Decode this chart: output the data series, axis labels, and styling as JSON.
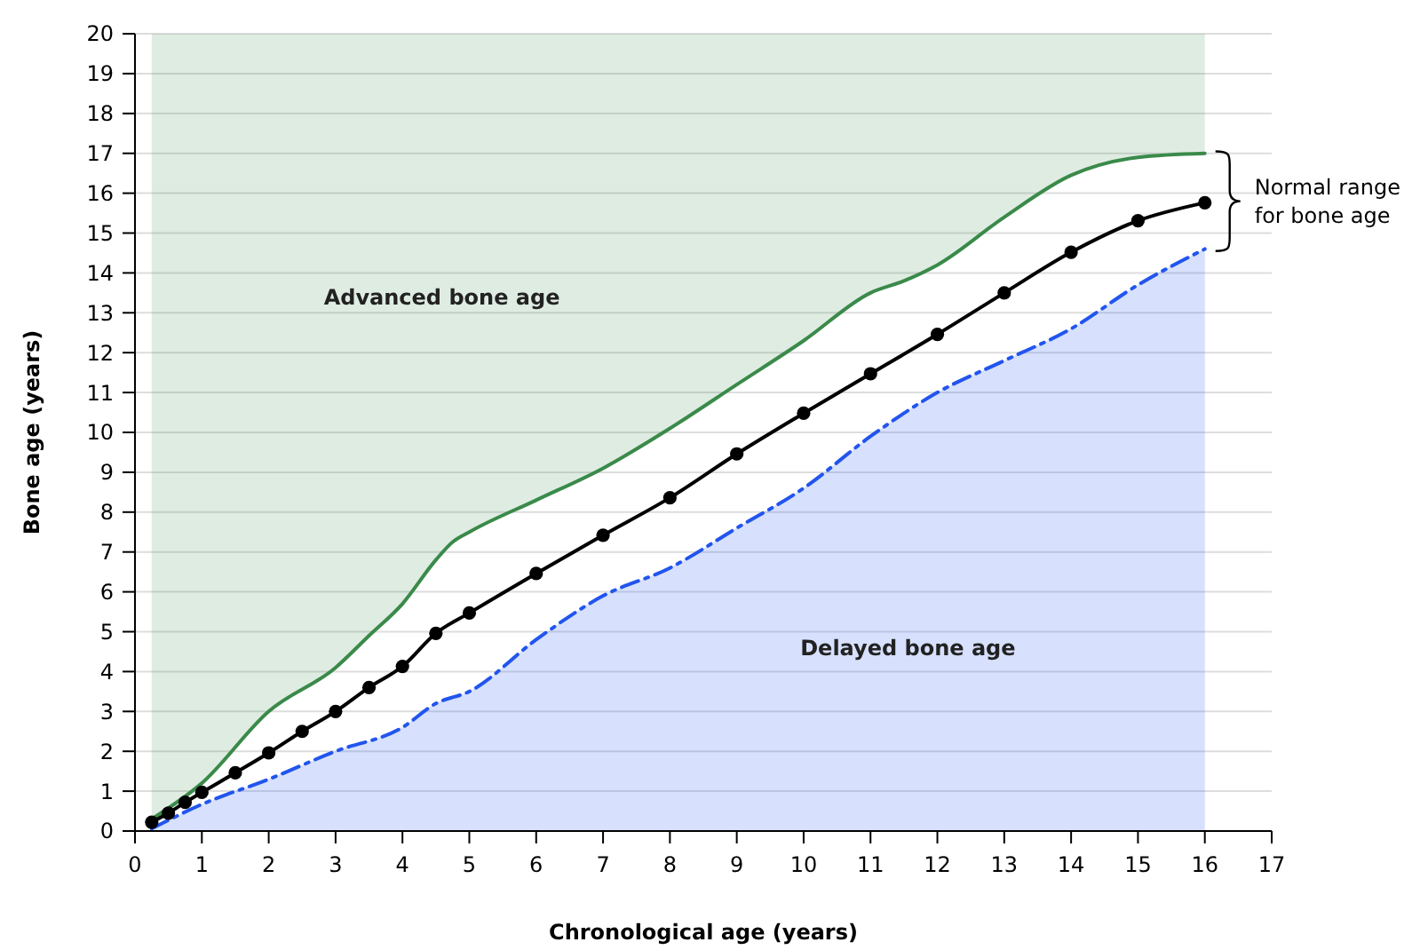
{
  "chart_data": {
    "type": "line",
    "xlabel": "Chronological age (years)",
    "ylabel": "Bone age (years)",
    "xlim": [
      0,
      17
    ],
    "xticks": [
      0,
      1,
      2,
      3,
      4,
      5,
      6,
      7,
      8,
      9,
      10,
      11,
      12,
      13,
      14,
      15,
      16,
      17
    ],
    "ylim": [
      0,
      20
    ],
    "yticks": [
      0,
      1,
      2,
      3,
      4,
      5,
      6,
      7,
      8,
      9,
      10,
      11,
      12,
      13,
      14,
      15,
      16,
      17,
      18,
      19,
      20
    ],
    "grid": "y",
    "series": [
      {
        "color": "#3a8a4a",
        "line_style": "solid",
        "marker": "none",
        "x": [
          0.25,
          1,
          2,
          3,
          3.5,
          4,
          4.5,
          4.75,
          5,
          6,
          7,
          8,
          9,
          10,
          11,
          11.5,
          12,
          13,
          14,
          15,
          16
        ],
        "values": [
          0.3,
          1.2,
          3.0,
          4.1,
          4.9,
          5.7,
          6.8,
          7.25,
          7.5,
          8.3,
          9.1,
          10.1,
          11.2,
          12.3,
          13.5,
          13.8,
          14.2,
          15.4,
          16.45,
          16.9,
          17.0
        ],
        "lower": [
          0.3,
          1.2,
          3.0,
          4.1,
          4.9,
          5.7,
          6.8,
          7.25,
          7.5,
          8.3,
          9.1,
          10.1,
          11.2,
          12.3,
          13.5,
          13.8,
          14.2,
          15.4,
          16.45,
          16.9,
          17.0
        ],
        "upper": [
          20,
          20,
          20,
          20,
          20,
          20,
          20,
          20,
          20,
          20,
          20,
          20,
          20,
          20,
          20,
          20,
          20,
          20,
          20,
          20,
          20
        ]
      },
      {
        "type": "area",
        "color": "#2255ee",
        "line_style": "dashed",
        "marker": "none",
        "x": [
          0.25,
          1,
          2,
          3,
          4,
          4.5,
          5,
          6,
          7,
          8,
          9,
          10,
          11,
          12,
          13,
          14,
          15,
          16
        ],
        "values": [
          0.06,
          0.67,
          1.3,
          2.0,
          2.6,
          3.2,
          3.5,
          4.8,
          5.9,
          6.6,
          7.6,
          8.6,
          9.9,
          11.0,
          11.8,
          12.6,
          13.7,
          14.6
        ]
      },
      {
        "color": "#000000",
        "line_style": "solid",
        "marker": "circle",
        "x": [
          0.25,
          0.5,
          0.75,
          1,
          1.5,
          2,
          2.5,
          3,
          3.5,
          4,
          4.5,
          5,
          6,
          7,
          8,
          9,
          10,
          11,
          12,
          13,
          14,
          15,
          16
        ],
        "values": [
          0.22,
          0.45,
          0.72,
          0.97,
          1.46,
          1.96,
          2.5,
          3.0,
          3.6,
          4.13,
          4.96,
          5.47,
          6.46,
          7.42,
          8.36,
          9.46,
          10.48,
          11.47,
          12.46,
          13.5,
          14.52,
          15.31,
          15.76
        ]
      }
    ],
    "annotations": [
      "Advanced bone age",
      "Delayed bone age",
      {
        "text": "Normal range for bone age",
        "x": 16,
        "y": 15.8
      }
    ]
  }
}
